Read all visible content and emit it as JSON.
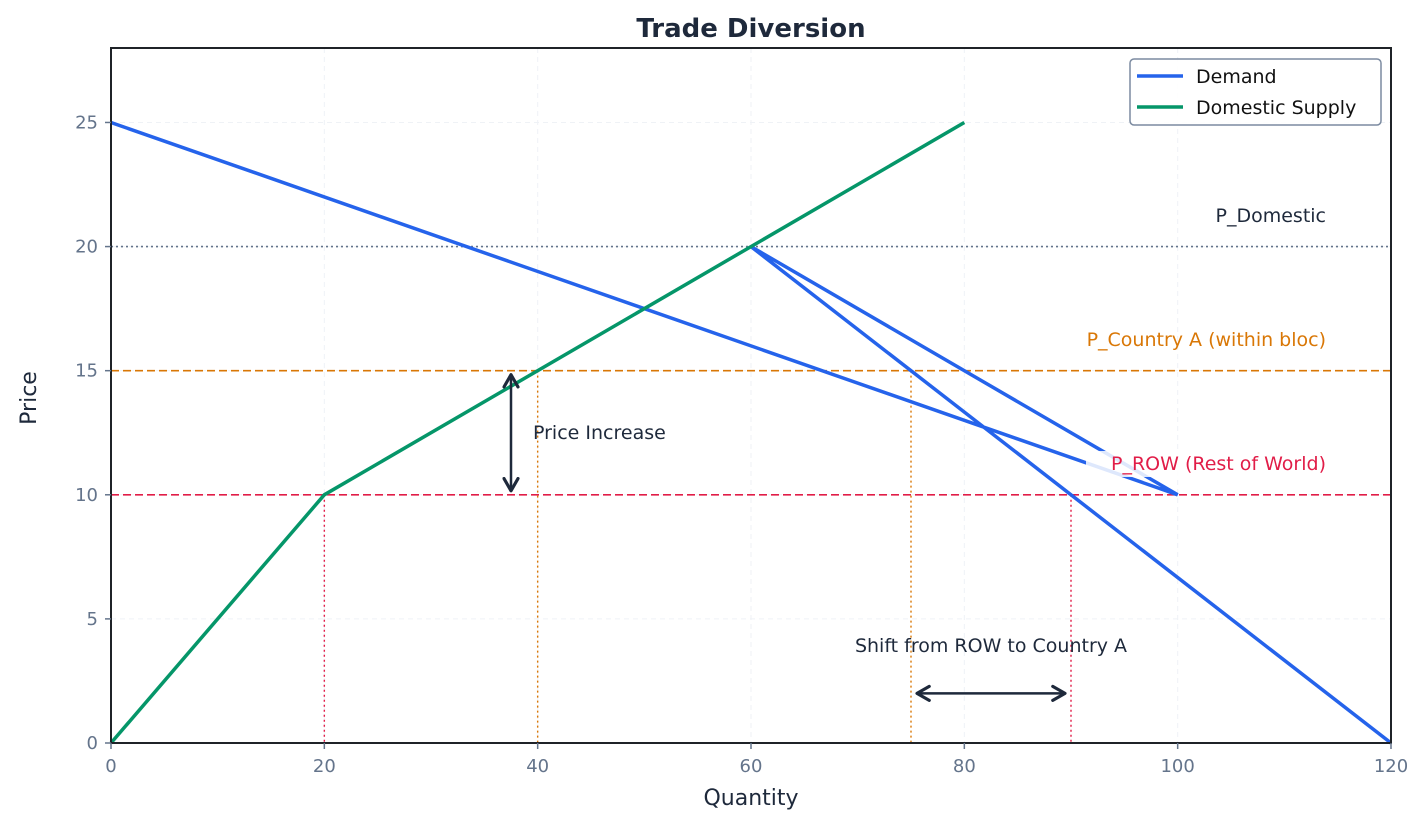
{
  "chart_data": {
    "type": "line",
    "title": "Trade Diversion",
    "xlabel": "Quantity",
    "ylabel": "Price",
    "xlim": [
      0,
      120
    ],
    "ylim": [
      0,
      28
    ],
    "xticks": [
      0,
      20,
      40,
      60,
      80,
      100,
      120
    ],
    "yticks": [
      0,
      5,
      10,
      15,
      20,
      25
    ],
    "grid": true,
    "legend_position": "upper right",
    "series": [
      {
        "name": "Demand",
        "color": "#2563eb",
        "points": [
          [
            0,
            25
          ],
          [
            100,
            10
          ],
          [
            60,
            20
          ],
          [
            120,
            0
          ]
        ]
      },
      {
        "name": "Domestic Supply",
        "color": "#059669",
        "points": [
          [
            0,
            0
          ],
          [
            20,
            10
          ],
          [
            80,
            25
          ]
        ]
      }
    ],
    "horizontal_lines": [
      {
        "label": "P_Domestic",
        "y": 20,
        "color": "#64748b",
        "style": "dotted"
      },
      {
        "label": "P_Country A (within bloc)",
        "y": 15,
        "color": "#d97706",
        "style": "dashed"
      },
      {
        "label": "P_ROW (Rest of World)",
        "y": 10,
        "color": "#e11d48",
        "style": "dashed"
      }
    ],
    "vertical_lines": [
      {
        "x": 20,
        "y_top": 10,
        "color": "#e11d48",
        "style": "dotted"
      },
      {
        "x": 40,
        "y_top": 15,
        "color": "#d97706",
        "style": "dotted"
      },
      {
        "x": 75,
        "y_top": 15,
        "color": "#d97706",
        "style": "dotted"
      },
      {
        "x": 90,
        "y_top": 10,
        "color": "#e11d48",
        "style": "dotted"
      }
    ],
    "annotations": [
      {
        "text": "Price Increase",
        "arrow": "double",
        "x": 37.5,
        "from_y": 15,
        "to_y": 10,
        "text_x": 39.5,
        "text_y": 12.5
      },
      {
        "text": "Shift from ROW to Country A",
        "arrow": "double",
        "y": 2,
        "from_x": 75,
        "to_x": 90,
        "text_x": 82.5,
        "text_y": 3.7
      }
    ]
  },
  "labels": {
    "title": "Trade Diversion",
    "xlabel": "Quantity",
    "ylabel": "Price",
    "xticks": [
      "0",
      "20",
      "40",
      "60",
      "80",
      "100",
      "120"
    ],
    "yticks": [
      "0",
      "5",
      "10",
      "15",
      "20",
      "25"
    ],
    "legend": [
      "Demand",
      "Domestic Supply"
    ],
    "p_domestic": "P_Domestic",
    "p_country_a": "P_Country A (within bloc)",
    "p_row": "P_ROW (Rest of World)",
    "price_increase": "Price Increase",
    "shift": "Shift from ROW to Country A"
  }
}
